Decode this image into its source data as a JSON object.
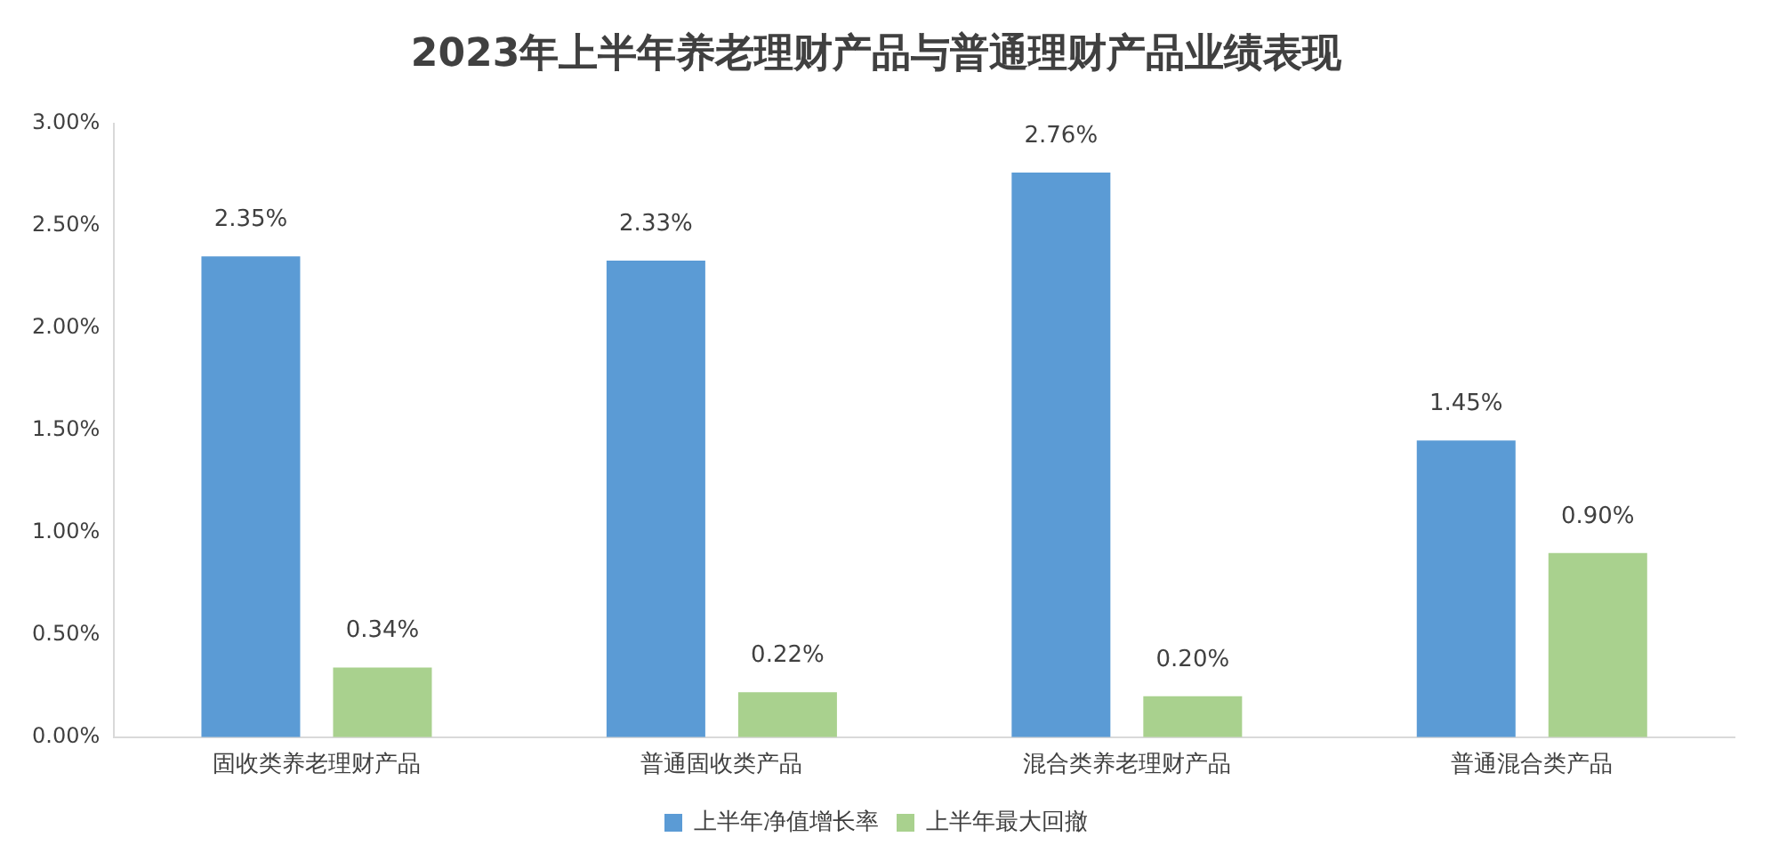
{
  "chart_data": {
    "type": "bar",
    "title": "2023年上半年养老理财产品与普通理财产品业绩表现",
    "categories": [
      "固收类养老理财产品",
      "普通固收类产品",
      "混合类养老理财产品",
      "普通混合类产品"
    ],
    "series": [
      {
        "name": "上半年净值增长率",
        "color": "#5b9bd5",
        "values": [
          2.35,
          2.33,
          2.76,
          1.45
        ],
        "value_labels": [
          "2.35%",
          "2.33%",
          "2.76%",
          "1.45%"
        ]
      },
      {
        "name": "上半年最大回撤",
        "color": "#a9d18e",
        "values": [
          0.34,
          0.22,
          0.2,
          0.9
        ],
        "value_labels": [
          "0.34%",
          "0.22%",
          "0.20%",
          "0.90%"
        ]
      }
    ],
    "ylim": [
      0,
      3
    ],
    "yticks": [
      {
        "value": 0,
        "label": "0.00%"
      },
      {
        "value": 0.5,
        "label": "0.50%"
      },
      {
        "value": 1,
        "label": "1.00%"
      },
      {
        "value": 1.5,
        "label": "1.50%"
      },
      {
        "value": 2,
        "label": "2.00%"
      },
      {
        "value": 2.5,
        "label": "2.50%"
      },
      {
        "value": 3,
        "label": "3.00%"
      }
    ],
    "grid": false,
    "legend": "bottom"
  }
}
